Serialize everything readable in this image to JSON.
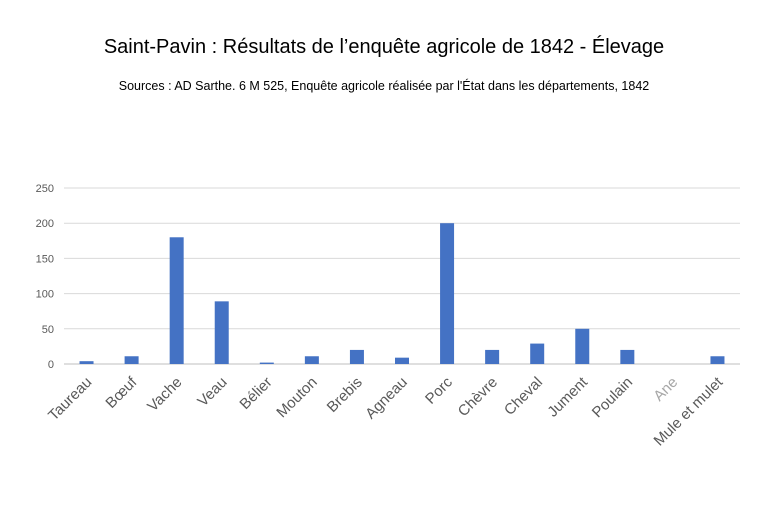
{
  "chart_data": {
    "type": "bar",
    "title": "Saint-Pavin : Résultats de l’enquête agricole de 1842 - Élevage",
    "subtitle": "Sources : AD Sarthe. 6 M 525,  Enquête agricole réalisée par l'État dans les départements, 1842",
    "xlabel": "",
    "ylabel": "",
    "categories": [
      "Taureau",
      "Bœuf",
      "Vache",
      "Veau",
      "Bélier",
      "Mouton",
      "Brebis",
      "Agneau",
      "Porc",
      "Chèvre",
      "Cheval",
      "Jument",
      "Poulain",
      "Ane",
      "Mule et mulet"
    ],
    "values": [
      4,
      11,
      180,
      89,
      2,
      11,
      20,
      9,
      200,
      20,
      29,
      50,
      20,
      0,
      11
    ],
    "yticks": [
      0,
      50,
      100,
      150,
      200,
      250
    ],
    "ylim": [
      0,
      250
    ],
    "grid": true,
    "legend": "none",
    "colors": {
      "bar": "#4472C4",
      "grid": "#d9d9d9",
      "axis": "#bfbfbf",
      "tick_text": "#595959",
      "faded_tick_text": "#a6a6a6"
    }
  }
}
